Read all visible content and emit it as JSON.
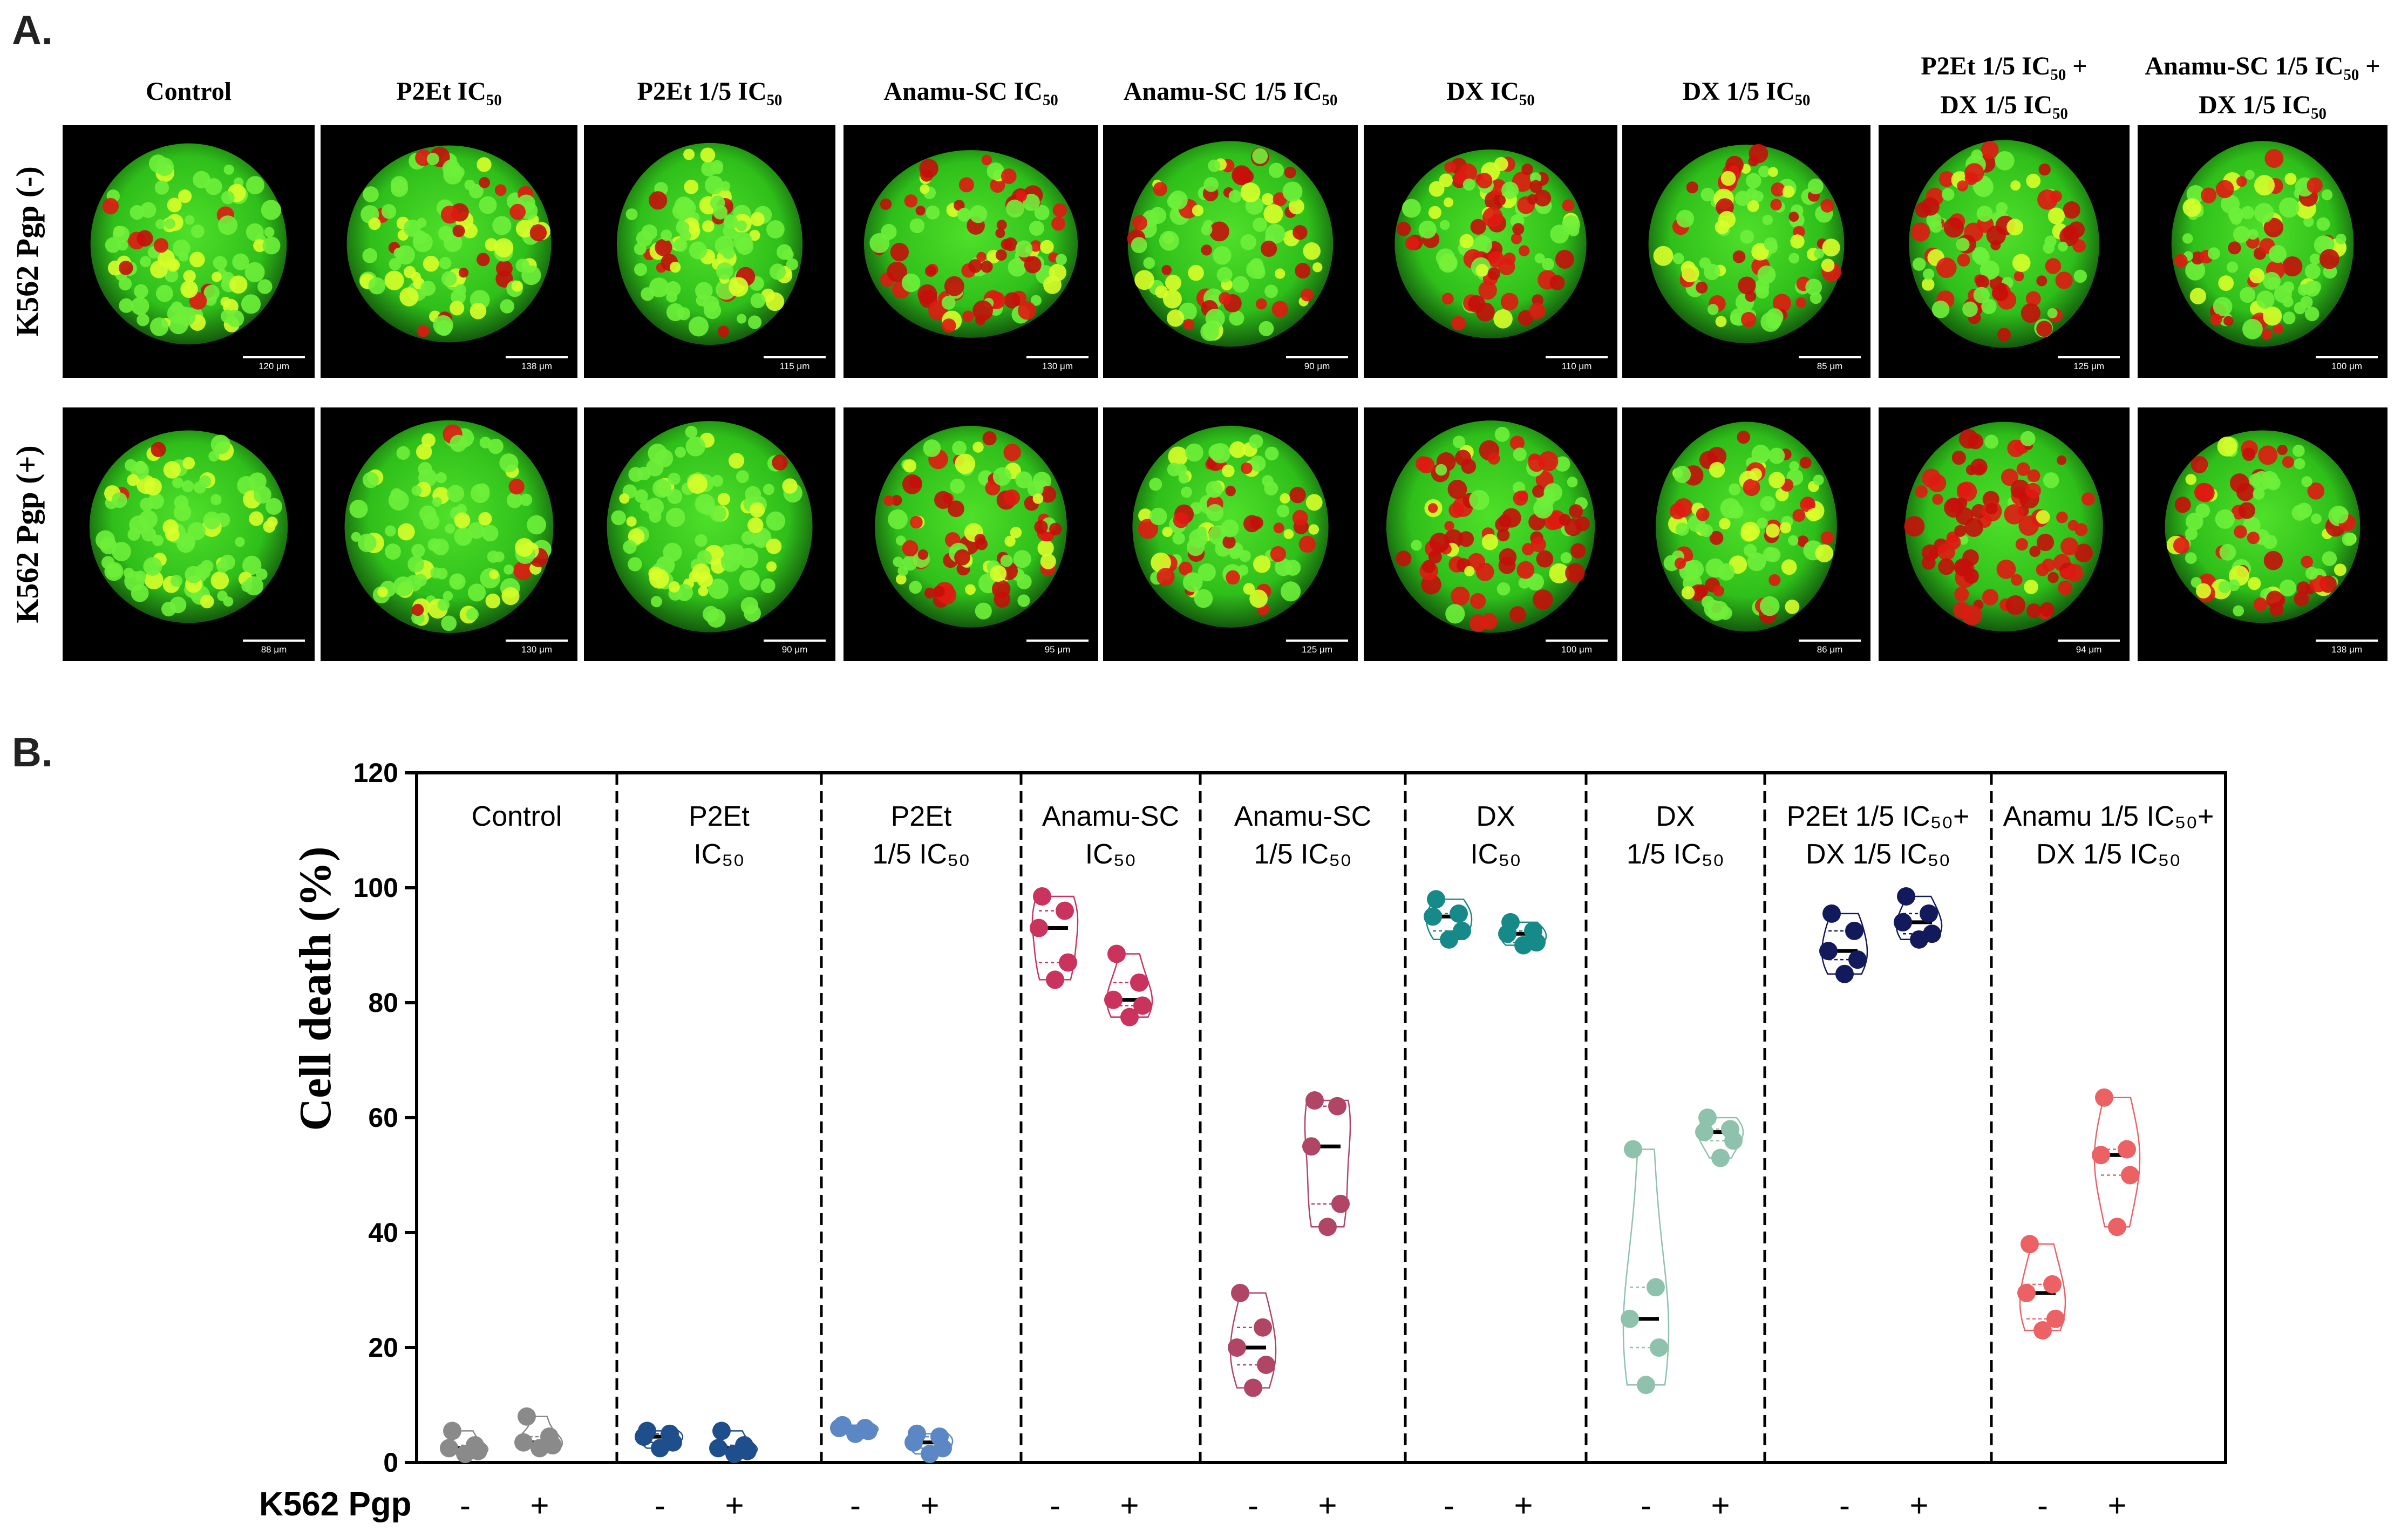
{
  "panel_a": {
    "letter": "A.",
    "columns": [
      {
        "l1": "Control",
        "l2": ""
      },
      {
        "l1": "P2Et IC₅₀",
        "l2": ""
      },
      {
        "l1": "P2Et 1/5 IC₅₀",
        "l2": ""
      },
      {
        "l1": "Anamu-SC IC₅₀",
        "l2": ""
      },
      {
        "l1": "Anamu-SC 1/5 IC₅₀",
        "l2": ""
      },
      {
        "l1": "DX IC₅₀",
        "l2": ""
      },
      {
        "l1": "DX 1/5 IC₅₀",
        "l2": ""
      },
      {
        "l1": "P2Et 1/5 IC₅₀ +",
        "l2": "DX 1/5 IC₅₀"
      },
      {
        "l1": "Anamu-SC 1/5 IC₅₀ +",
        "l2": "DX 1/5 IC₅₀"
      }
    ],
    "rows": [
      "K562 Pgp (-)",
      "K562 Pgp (+)"
    ],
    "scale_bars": [
      [
        "120 μm",
        "138 μm",
        "115 μm",
        "130 μm",
        "90 μm",
        "110 μm",
        "85 μm",
        "125 μm",
        "100 μm"
      ],
      [
        "88 μm",
        "130 μm",
        "90 μm",
        "95 μm",
        "125 μm",
        "100 μm",
        "86 μm",
        "94 μm",
        "138 μm"
      ]
    ],
    "red_fraction": [
      [
        0.05,
        0.12,
        0.1,
        0.55,
        0.4,
        0.55,
        0.4,
        0.6,
        0.3
      ],
      [
        0.05,
        0.05,
        0.02,
        0.45,
        0.35,
        0.7,
        0.35,
        0.92,
        0.45
      ]
    ]
  },
  "panel_b": {
    "letter": "B.",
    "pgp_label": "K562 Pgp",
    "signs": [
      "-",
      "+"
    ]
  },
  "chart_data": {
    "type": "scatter",
    "ylabel": "Cell death (%)",
    "ylim": [
      0,
      120
    ],
    "yticks": [
      0,
      20,
      40,
      60,
      80,
      100,
      120
    ],
    "groups": [
      {
        "l1": "Control",
        "l2": "",
        "color": "#8a8a8a",
        "minus": [
          1.5,
          2.0,
          2.5,
          3.0,
          5.5
        ],
        "plus": [
          2.5,
          3.0,
          3.5,
          4.5,
          8.0
        ]
      },
      {
        "l1": "P2Et",
        "l2": "IC₅₀",
        "color": "#1f4e8c",
        "minus": [
          2.5,
          3.5,
          4.5,
          5.0,
          5.5
        ],
        "plus": [
          1.5,
          2.0,
          2.5,
          3.0,
          5.5
        ]
      },
      {
        "l1": "P2Et",
        "l2": "1/5 IC₅₀",
        "color": "#5b87c4",
        "minus": [
          5.0,
          5.5,
          6.0,
          6.0,
          6.5
        ],
        "plus": [
          1.5,
          2.5,
          3.5,
          4.5,
          5.0
        ]
      },
      {
        "l1": "Anamu-SC",
        "l2": "IC₅₀",
        "color": "#c9335d",
        "minus": [
          84,
          87,
          93,
          96,
          98.5
        ],
        "plus": [
          77.5,
          79.5,
          80.5,
          83.5,
          88.5
        ]
      },
      {
        "l1": "Anamu-SC",
        "l2": "1/5 IC₅₀",
        "color": "#b04566",
        "minus": [
          13,
          17,
          20,
          23.5,
          29.5
        ],
        "plus": [
          41,
          45,
          55,
          62,
          63
        ]
      },
      {
        "l1": "DX",
        "l2": "IC₅₀",
        "color": "#168a88",
        "minus": [
          91,
          92.5,
          95,
          95.5,
          98
        ],
        "plus": [
          90,
          90.5,
          92,
          92.5,
          94
        ]
      },
      {
        "l1": "DX",
        "l2": "1/5 IC₅₀",
        "color": "#8fc2ad",
        "minus": [
          13.5,
          20,
          25,
          30.5,
          54.5
        ],
        "plus": [
          53,
          56,
          57.5,
          58,
          60
        ]
      },
      {
        "l1": "P2Et 1/5 IC₅₀+",
        "l2": "DX 1/5 IC₅₀",
        "color": "#121a5c",
        "minus": [
          85,
          87.5,
          89,
          92.5,
          95.5
        ],
        "plus": [
          91,
          92,
          94,
          95.5,
          98.5
        ]
      },
      {
        "l1": "Anamu 1/5 IC₅₀+",
        "l2": "DX 1/5 IC₅₀",
        "color": "#ec6264",
        "minus": [
          23,
          25,
          29.5,
          31,
          38
        ],
        "plus": [
          41,
          50,
          53.5,
          54.5,
          63.5
        ]
      }
    ]
  }
}
